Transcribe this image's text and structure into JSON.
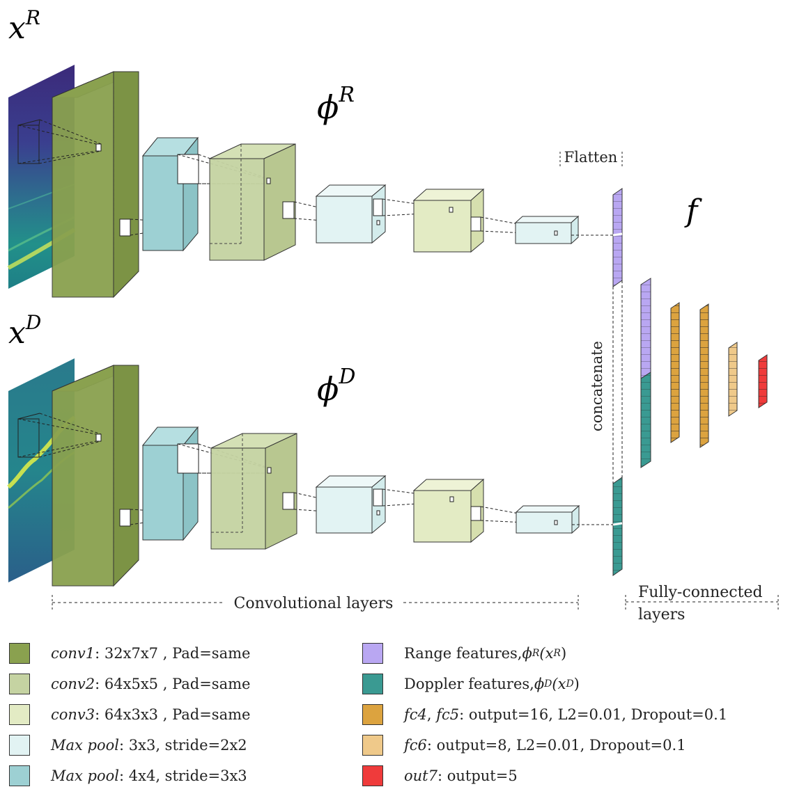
{
  "colors": {
    "conv1": "#8aa14f",
    "conv2": "#c5d3a2",
    "conv3": "#e3ebc4",
    "maxpool3": "#e2f3f3",
    "maxpool4": "#9dd0d3",
    "range": "#b9a7f2",
    "doppler": "#3a9a92",
    "fc45": "#dca33f",
    "fc6": "#efc98a",
    "out7": "#ef3b3b"
  },
  "labels": {
    "xR_base": "x",
    "xR_sup": "R",
    "xD_base": "x",
    "xD_sup": "D",
    "phiR_base": "ϕ",
    "phiR_sup": "R",
    "phiD_base": "ϕ",
    "phiD_sup": "D",
    "f": "f",
    "flatten": "Flatten",
    "concatenate": "concatenate",
    "conv_layers": "Convolutional layers",
    "fc_line1": "Fully-connected",
    "fc_line2": "layers"
  },
  "legend": {
    "conv1": {
      "name": "conv1",
      "rest": ": 32x7x7 , Pad=same"
    },
    "conv2": {
      "name": "conv2",
      "rest": ": 64x5x5 , Pad=same"
    },
    "conv3": {
      "name": "conv3",
      "rest": ": 64x3x3 , Pad=same"
    },
    "maxpool3": {
      "name": "Max pool",
      "rest": ": 3x3, stride=2x2"
    },
    "maxpool4": {
      "name": "Max pool",
      "rest": ": 4x4, stride=3x3"
    },
    "range": {
      "text": "Range features, ",
      "math": "ϕ",
      "sup1": "R",
      "mid": "(x",
      "sup2": "R",
      "end": ")"
    },
    "doppler": {
      "text": "Doppler features, ",
      "math": "ϕ",
      "sup1": "D",
      "mid": "(x",
      "sup2": "D",
      "end": ")"
    },
    "fc45": {
      "name1": "fc4",
      "sep": ", ",
      "name2": "fc5",
      "rest": ": output=16, L2=0.01, Dropout=0.1"
    },
    "fc6": {
      "name": "fc6",
      "rest": ": output=8, L2=0.01, Dropout=0.1"
    },
    "out7": {
      "name": "out7",
      "rest": ": output=5"
    }
  }
}
